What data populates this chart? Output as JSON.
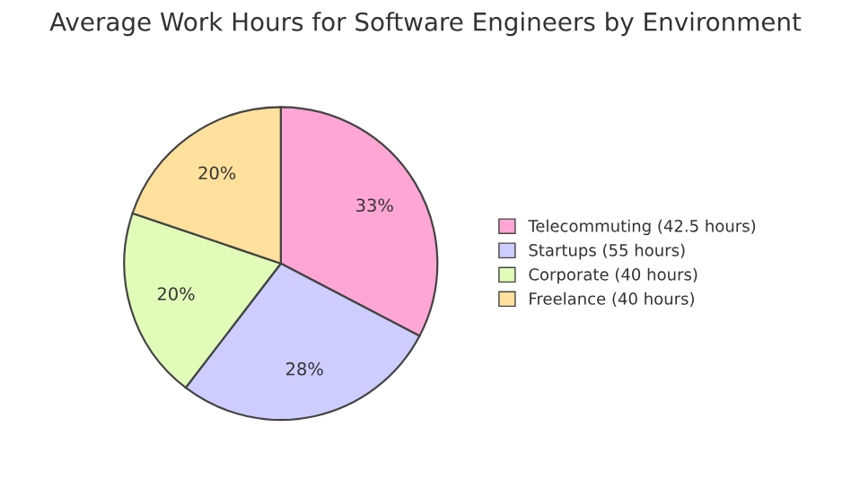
{
  "chart_data": {
    "type": "pie",
    "title": "Average Work Hours for Software Engineers by Environment",
    "categories": [
      "Telecommuting (42.5 hours)",
      "Startups (55 hours)",
      "Corporate (40 hours)",
      "Freelance (40 hours)"
    ],
    "values": [
      33,
      28,
      20,
      20
    ],
    "value_labels": [
      "33%",
      "28%",
      "20%",
      "20%"
    ],
    "colors": [
      "#ffa6d5",
      "#cdcdff",
      "#e0fcb8",
      "#ffe09c"
    ],
    "legend": "right"
  }
}
